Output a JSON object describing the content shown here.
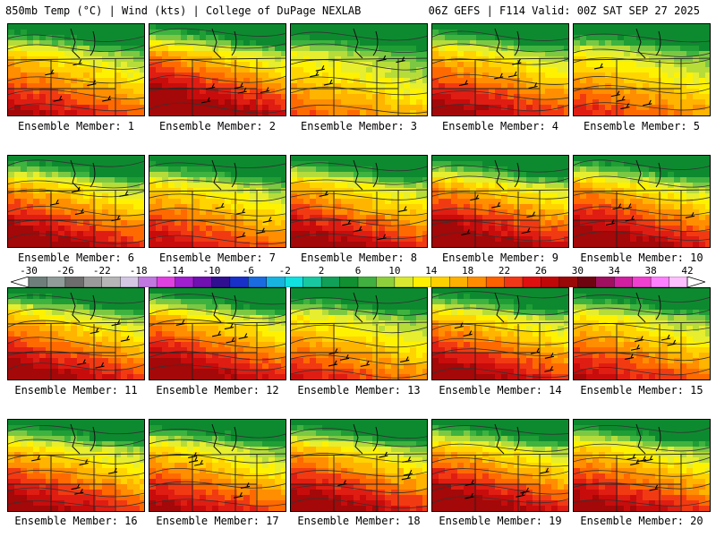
{
  "header": {
    "left": "850mb Temp (°C) | Wind (kts) | College of DuPage NEXLAB",
    "right": "06Z GEFS | F114 Valid: 00Z SAT SEP 27 2025"
  },
  "caption_prefix": "Ensemble Member:",
  "members": [
    {
      "id": "1",
      "warmth": 0.72
    },
    {
      "id": "2",
      "warmth": 0.9
    },
    {
      "id": "3",
      "warmth": 0.55
    },
    {
      "id": "4",
      "warmth": 0.78
    },
    {
      "id": "5",
      "warmth": 0.62
    },
    {
      "id": "6",
      "warmth": 0.82
    },
    {
      "id": "7",
      "warmth": 0.7
    },
    {
      "id": "8",
      "warmth": 0.8
    },
    {
      "id": "9",
      "warmth": 0.86
    },
    {
      "id": "10",
      "warmth": 0.85
    },
    {
      "id": "11",
      "warmth": 0.8
    },
    {
      "id": "12",
      "warmth": 0.84
    },
    {
      "id": "13",
      "warmth": 0.65
    },
    {
      "id": "14",
      "warmth": 0.8
    },
    {
      "id": "15",
      "warmth": 0.7
    },
    {
      "id": "16",
      "warmth": 0.78
    },
    {
      "id": "17",
      "warmth": 0.74
    },
    {
      "id": "18",
      "warmth": 0.82
    },
    {
      "id": "19",
      "warmth": 0.84
    },
    {
      "id": "20",
      "warmth": 0.78
    }
  ],
  "colorbar": {
    "ticks": [
      "-30",
      "-26",
      "-22",
      "-18",
      "-14",
      "-10",
      "-6",
      "-2",
      "2",
      "6",
      "10",
      "14",
      "18",
      "22",
      "26",
      "30",
      "34",
      "38",
      "42"
    ],
    "colors": [
      "#6e7f7b",
      "#8f9c99",
      "#6d6d6d",
      "#9b9b9b",
      "#b6b6b6",
      "#d3c7e3",
      "#c078e0",
      "#e040e0",
      "#a020d0",
      "#7010b0",
      "#301090",
      "#1830c8",
      "#1a6be0",
      "#18b4e0",
      "#10e0e0",
      "#18c8a0",
      "#10a058",
      "#109030",
      "#40b040",
      "#8ed03c",
      "#d8e830",
      "#fff000",
      "#ffd000",
      "#ffb000",
      "#ff8c00",
      "#ff6000",
      "#f03818",
      "#e01010",
      "#c00808",
      "#9a0808",
      "#6e0410",
      "#a01060",
      "#d020a0",
      "#f040d0",
      "#ff80ff",
      "#ffc0ff"
    ]
  }
}
